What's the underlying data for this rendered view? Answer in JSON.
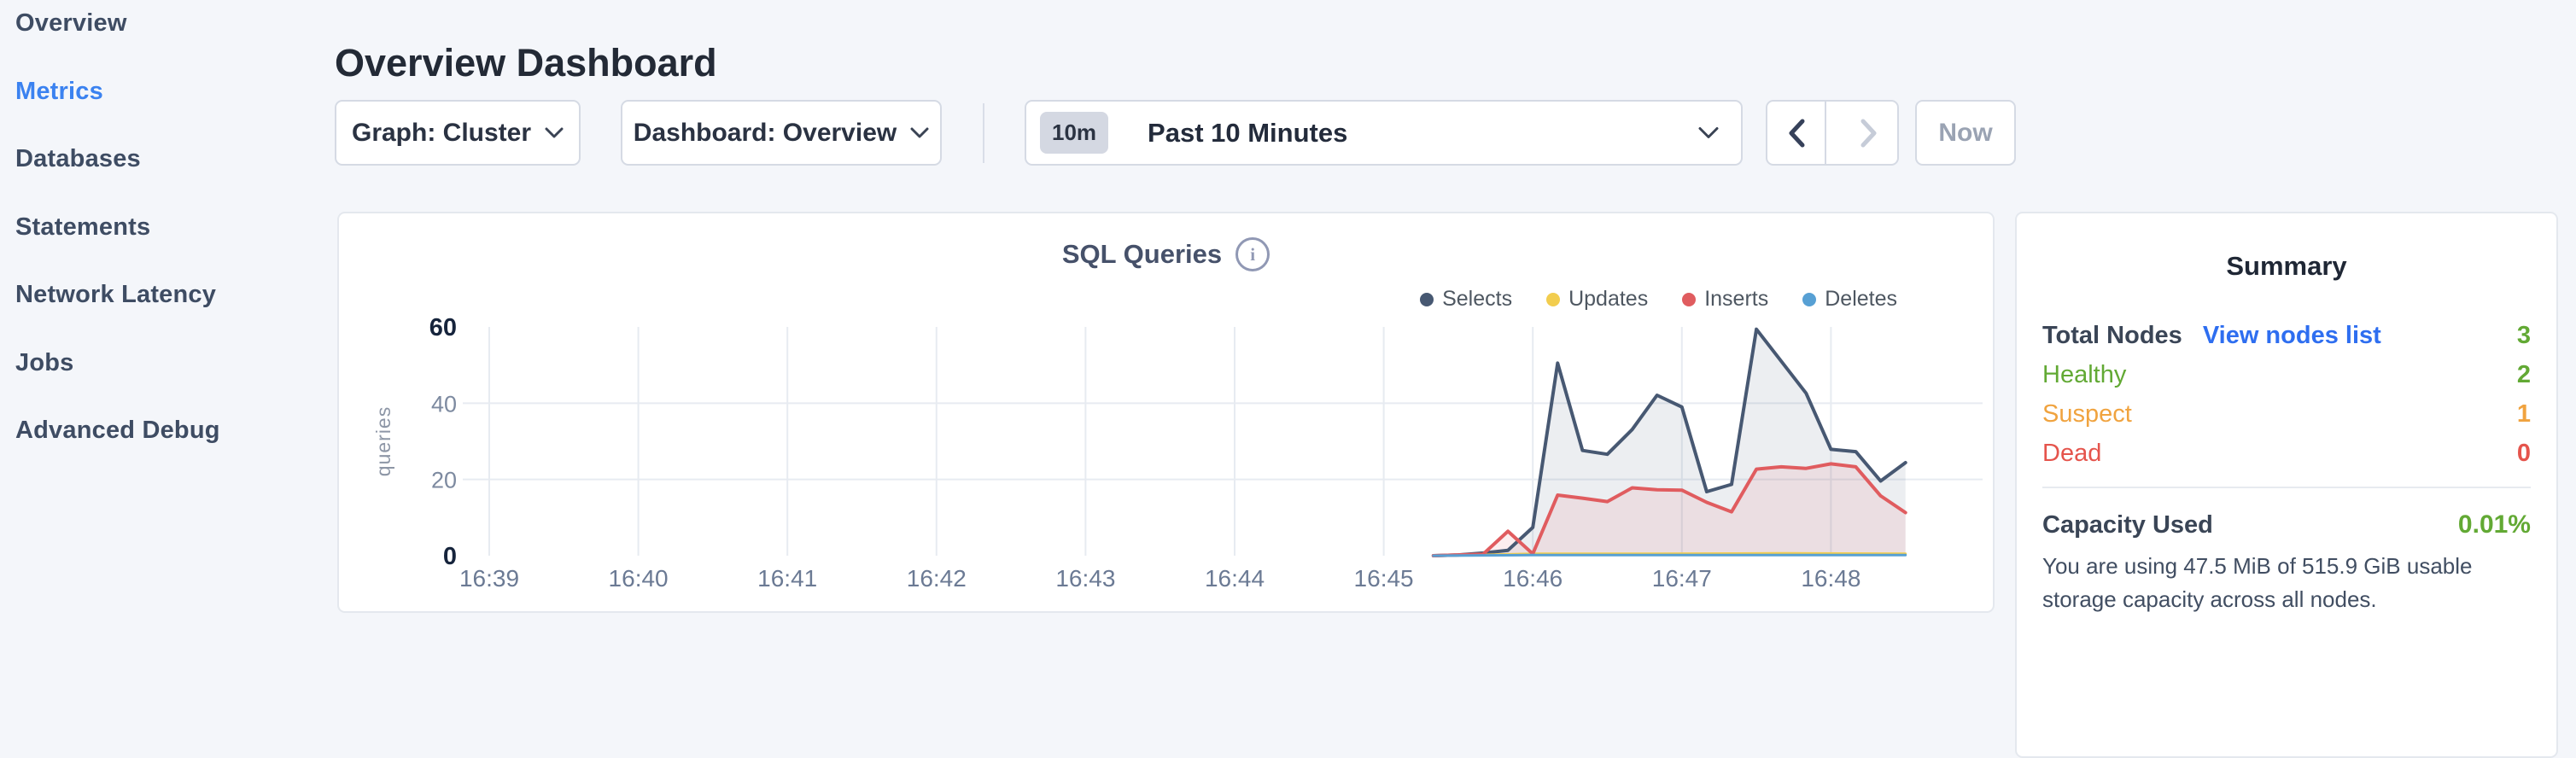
{
  "sidebar": {
    "items": [
      {
        "label": "Overview",
        "active": false
      },
      {
        "label": "Metrics",
        "active": true
      },
      {
        "label": "Databases",
        "active": false
      },
      {
        "label": "Statements",
        "active": false
      },
      {
        "label": "Network Latency",
        "active": false
      },
      {
        "label": "Jobs",
        "active": false
      },
      {
        "label": "Advanced Debug",
        "active": false
      }
    ]
  },
  "header": {
    "title": "Overview Dashboard"
  },
  "controls": {
    "graph_dropdown": "Graph: Cluster",
    "dashboard_dropdown": "Dashboard: Overview",
    "time_range_badge": "10m",
    "time_range_label": "Past 10 Minutes",
    "prev_arrow": "chevron-left",
    "next_arrow": "chevron-right",
    "now_label": "Now"
  },
  "summary": {
    "heading": "Summary",
    "total_nodes_label": "Total Nodes",
    "view_nodes_link": "View nodes list",
    "total_nodes_value": "3",
    "total_nodes_color": "#62a934",
    "rows": [
      {
        "label": "Healthy",
        "value": "2",
        "color": "#62a934"
      },
      {
        "label": "Suspect",
        "value": "1",
        "color": "#f0a33f"
      },
      {
        "label": "Dead",
        "value": "0",
        "color": "#e5544c"
      }
    ],
    "capacity_label": "Capacity Used",
    "capacity_value": "0.01%",
    "capacity_description": "You are using 47.5 MiB of 515.9 GiB usable storage capacity across all nodes."
  },
  "chart_data": {
    "type": "area",
    "title": "SQL Queries",
    "ylabel": "queries",
    "ylim": [
      0,
      60
    ],
    "y_ticks": [
      0,
      20,
      40,
      60
    ],
    "grid_y": [
      20,
      40
    ],
    "x_ticks": [
      "16:39",
      "16:40",
      "16:41",
      "16:42",
      "16:43",
      "16:44",
      "16:45",
      "16:46",
      "16:47",
      "16:48"
    ],
    "legend_position": "top-right",
    "grid": true,
    "x_note": "points are [seconds after 16:39:00, value]; series sampled every 10s; no data drawn before 16:45:20",
    "series": [
      {
        "name": "Selects",
        "color": "#475872",
        "fill": "rgba(71,88,114,0.10)",
        "points": [
          [
            380,
            0
          ],
          [
            390,
            0.2
          ],
          [
            400,
            0.7
          ],
          [
            410,
            1.4
          ],
          [
            420,
            7.4
          ],
          [
            430,
            50.5
          ],
          [
            440,
            27.6
          ],
          [
            450,
            26.6
          ],
          [
            460,
            33.1
          ],
          [
            470,
            42.1
          ],
          [
            480,
            39.0
          ],
          [
            490,
            16.8
          ],
          [
            500,
            18.7
          ],
          [
            510,
            59.4
          ],
          [
            520,
            51.0
          ],
          [
            530,
            42.6
          ],
          [
            540,
            27.9
          ],
          [
            550,
            27.3
          ],
          [
            560,
            19.6
          ],
          [
            570,
            24.4
          ]
        ]
      },
      {
        "name": "Updates",
        "color": "#f2cd4e",
        "points": [
          [
            380,
            0
          ],
          [
            400,
            0.2
          ],
          [
            420,
            0.5
          ],
          [
            470,
            0.5
          ],
          [
            520,
            0.6
          ],
          [
            570,
            0.5
          ]
        ]
      },
      {
        "name": "Inserts",
        "color": "#e05c5f",
        "fill": "rgba(224,92,95,0.10)",
        "points": [
          [
            380,
            0
          ],
          [
            390,
            0.2
          ],
          [
            400,
            0.4
          ],
          [
            410,
            6.4
          ],
          [
            420,
            0.5
          ],
          [
            430,
            15.9
          ],
          [
            440,
            15.1
          ],
          [
            450,
            14.2
          ],
          [
            460,
            17.8
          ],
          [
            470,
            17.3
          ],
          [
            480,
            17.2
          ],
          [
            490,
            14.0
          ],
          [
            500,
            11.5
          ],
          [
            510,
            22.7
          ],
          [
            520,
            23.3
          ],
          [
            530,
            22.9
          ],
          [
            540,
            24.1
          ],
          [
            550,
            23.3
          ],
          [
            560,
            15.7
          ],
          [
            570,
            11.3
          ]
        ]
      },
      {
        "name": "Deletes",
        "color": "#57a0d4",
        "points": [
          [
            380,
            0
          ],
          [
            420,
            0.15
          ],
          [
            500,
            0.15
          ],
          [
            570,
            0.15
          ]
        ]
      }
    ]
  }
}
